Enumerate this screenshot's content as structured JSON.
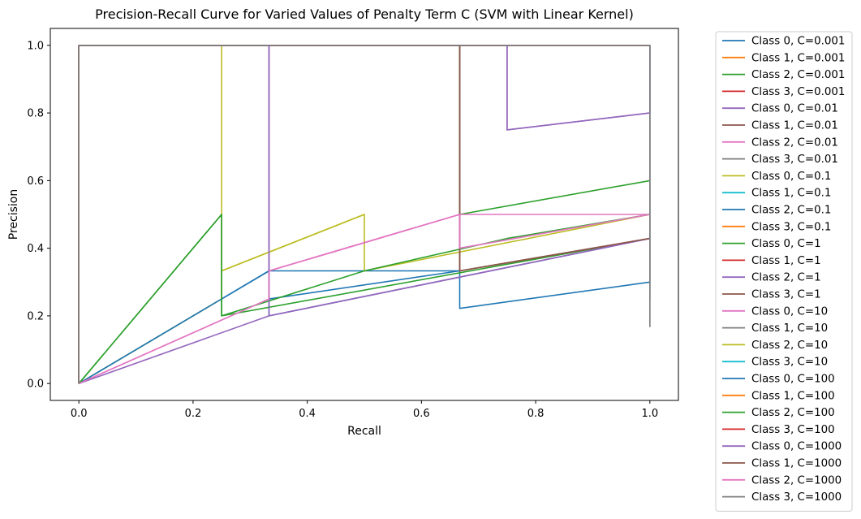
{
  "chart_data": {
    "type": "line",
    "title": "Precision-Recall Curve for Varied Values of Penalty Term C (SVM with Linear Kernel)",
    "xlabel": "Recall",
    "ylabel": "Precision",
    "xlim": [
      -0.05,
      1.05
    ],
    "ylim": [
      -0.05,
      1.05
    ],
    "xticks": [
      0.0,
      0.2,
      0.4,
      0.6,
      0.8,
      1.0
    ],
    "xtick_labels": [
      "0.0",
      "0.2",
      "0.4",
      "0.6",
      "0.8",
      "1.0"
    ],
    "yticks": [
      0.0,
      0.2,
      0.4,
      0.6,
      0.8,
      1.0
    ],
    "ytick_labels": [
      "0.0",
      "0.2",
      "0.4",
      "0.6",
      "0.8",
      "1.0"
    ],
    "grid": false,
    "legend_position": "outside-right",
    "series": [
      {
        "name": "Class 0, C=0.001",
        "color": "#1f77b4",
        "x": [
          0,
          0,
          0.333,
          0.333,
          0.667,
          0.667,
          1.0,
          1.0
        ],
        "y": [
          0,
          1,
          1,
          0.333,
          0.333,
          0.222,
          0.3,
          1
        ]
      },
      {
        "name": "Class 1, C=0.001",
        "color": "#ff7f0e",
        "x": [
          0,
          0,
          1.0
        ],
        "y": [
          0,
          1,
          1
        ]
      },
      {
        "name": "Class 2, C=0.001",
        "color": "#2ca02c",
        "x": [
          0,
          0.25,
          0.25,
          1.0
        ],
        "y": [
          0,
          0.5,
          0.2,
          0.429
        ]
      },
      {
        "name": "Class 3, C=0.001",
        "color": "#d62728",
        "x": [
          0,
          0,
          1.0
        ],
        "y": [
          0,
          1,
          1
        ]
      },
      {
        "name": "Class 0, C=0.01",
        "color": "#9467bd",
        "x": [
          0,
          0,
          0.75,
          0.75,
          1.0,
          1.0
        ],
        "y": [
          0,
          1,
          1,
          0.75,
          0.8,
          1
        ]
      },
      {
        "name": "Class 1, C=0.01",
        "color": "#8c564b",
        "x": [
          0,
          0,
          0.667,
          0.667,
          1.0
        ],
        "y": [
          0,
          1,
          1,
          0.333,
          0.429
        ]
      },
      {
        "name": "Class 2, C=0.01",
        "color": "#e377c2",
        "x": [
          0,
          0.333,
          0.333,
          0.667,
          0.667,
          1.0
        ],
        "y": [
          0,
          0.25,
          0.333,
          0.5,
          0.4,
          0.5
        ]
      },
      {
        "name": "Class 3, C=0.01",
        "color": "#7f7f7f",
        "x": [
          0,
          0,
          1.0,
          1.0
        ],
        "y": [
          0,
          1,
          1,
          0.167
        ]
      },
      {
        "name": "Class 0, C=0.1",
        "color": "#bcbd22",
        "x": [
          0,
          0,
          0.25,
          0.25,
          0.5,
          0.5,
          1.0
        ],
        "y": [
          0,
          1,
          1,
          0.333,
          0.5,
          0.333,
          0.5
        ]
      },
      {
        "name": "Class 1, C=0.1",
        "color": "#17becf",
        "x": [
          0,
          0,
          1.0
        ],
        "y": [
          0,
          1,
          1
        ]
      },
      {
        "name": "Class 2, C=0.1",
        "color": "#1f77b4",
        "x": [
          0,
          0.333,
          0.333,
          1.0
        ],
        "y": [
          0,
          0.333,
          0.2,
          0.429
        ]
      },
      {
        "name": "Class 3, C=0.1",
        "color": "#ff7f0e",
        "x": [
          0,
          0,
          1.0
        ],
        "y": [
          0,
          1,
          1
        ]
      },
      {
        "name": "Class 0, C=1",
        "color": "#2ca02c",
        "x": [
          0,
          0,
          0.667,
          0.667,
          1.0
        ],
        "y": [
          0,
          1,
          1,
          0.5,
          0.6
        ]
      },
      {
        "name": "Class 1, C=1",
        "color": "#d62728",
        "x": [
          0,
          0,
          1.0
        ],
        "y": [
          0,
          1,
          1
        ]
      },
      {
        "name": "Class 2, C=1",
        "color": "#9467bd",
        "x": [
          0,
          0.333,
          0.333,
          1.0
        ],
        "y": [
          0,
          0.2,
          0.2,
          0.429
        ]
      },
      {
        "name": "Class 3, C=1",
        "color": "#8c564b",
        "x": [
          0,
          0,
          0.667,
          0.667,
          1.0
        ],
        "y": [
          0,
          1,
          1,
          0.333,
          0.429
        ]
      },
      {
        "name": "Class 0, C=10",
        "color": "#e377c2",
        "x": [
          0,
          0,
          0.333,
          0.333,
          0.667,
          1.0
        ],
        "y": [
          0,
          1,
          1,
          0.333,
          0.5,
          0.5
        ]
      },
      {
        "name": "Class 1, C=10",
        "color": "#7f7f7f",
        "x": [
          0,
          0,
          1.0,
          1.0
        ],
        "y": [
          0,
          1,
          1,
          0.25
        ]
      },
      {
        "name": "Class 2, C=10",
        "color": "#bcbd22",
        "x": [
          0,
          0.25,
          0.25,
          0.5
        ],
        "y": [
          0,
          0.25,
          0.333,
          0.5
        ]
      },
      {
        "name": "Class 3, C=10",
        "color": "#17becf",
        "x": [
          0,
          0,
          1.0
        ],
        "y": [
          0,
          1,
          1
        ]
      },
      {
        "name": "Class 0, C=100",
        "color": "#1f77b4",
        "x": [
          0,
          0.333,
          0.333,
          0.667,
          0.667
        ],
        "y": [
          0,
          0.333,
          0.25,
          0.333,
          0.333
        ]
      },
      {
        "name": "Class 1, C=100",
        "color": "#ff7f0e",
        "x": [
          0,
          0,
          1.0
        ],
        "y": [
          0,
          1,
          1
        ]
      },
      {
        "name": "Class 2, C=100",
        "color": "#2ca02c",
        "x": [
          0,
          0.25,
          0.25,
          0.5,
          0.75,
          1.0
        ],
        "y": [
          0,
          0.5,
          0.2,
          0.333,
          0.429,
          0.5
        ]
      },
      {
        "name": "Class 3, C=100",
        "color": "#d62728",
        "x": [
          0,
          0,
          1.0
        ],
        "y": [
          0,
          1,
          1
        ]
      },
      {
        "name": "Class 0, C=1000",
        "color": "#9467bd",
        "x": [
          0,
          0,
          0.75,
          0.75,
          1.0,
          1.0,
          0.333,
          0.333,
          1.0
        ],
        "y": [
          0,
          1,
          1,
          0.75,
          0.8,
          1,
          1,
          0.2,
          0.429
        ]
      },
      {
        "name": "Class 1, C=1000",
        "color": "#8c564b",
        "x": [
          0,
          0,
          0.667,
          0.667,
          1.0
        ],
        "y": [
          0,
          1,
          1,
          0.333,
          0.429
        ]
      },
      {
        "name": "Class 2, C=1000",
        "color": "#e377c2",
        "x": [
          0,
          0.333,
          0.333,
          0.667,
          0.667,
          1.0
        ],
        "y": [
          0,
          0.25,
          0.333,
          0.5,
          0.4,
          0.5
        ]
      },
      {
        "name": "Class 3, C=1000",
        "color": "#7f7f7f",
        "x": [
          0,
          0,
          1.0,
          1.0
        ],
        "y": [
          0,
          1,
          1,
          0.167
        ]
      }
    ]
  }
}
